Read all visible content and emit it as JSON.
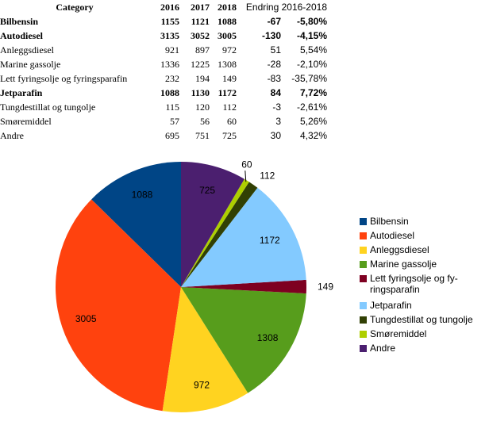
{
  "table": {
    "headers": {
      "category": "Category",
      "y2016": "2016",
      "y2017": "2017",
      "y2018": "2018",
      "change": "Endring 2016-2018"
    },
    "rows": [
      {
        "category": "Bilbensin",
        "y2016": "1155",
        "y2017": "1121",
        "y2018": "1088",
        "diff": "-67",
        "pct": "-5,80%",
        "bold": true
      },
      {
        "category": "Autodiesel",
        "y2016": "3135",
        "y2017": "3052",
        "y2018": "3005",
        "diff": "-130",
        "pct": "-4,15%",
        "bold": true
      },
      {
        "category": "Anleggsdiesel",
        "y2016": "921",
        "y2017": "897",
        "y2018": "972",
        "diff": "51",
        "pct": "5,54%",
        "bold": false
      },
      {
        "category": "Marine gassolje",
        "y2016": "1336",
        "y2017": "1225",
        "y2018": "1308",
        "diff": "-28",
        "pct": "-2,10%",
        "bold": false
      },
      {
        "category": "Lett fyringsolje og fyringsparafin",
        "y2016": "232",
        "y2017": "194",
        "y2018": "149",
        "diff": "-83",
        "pct": "-35,78%",
        "bold": false
      },
      {
        "category": "Jetparafin",
        "y2016": "1088",
        "y2017": "1130",
        "y2018": "1172",
        "diff": "84",
        "pct": "7,72%",
        "bold": true
      },
      {
        "category": "Tungdestillat og tungolje",
        "y2016": "115",
        "y2017": "120",
        "y2018": "112",
        "diff": "-3",
        "pct": "-2,61%",
        "bold": false
      },
      {
        "category": "Smøremiddel",
        "y2016": "57",
        "y2017": "56",
        "y2018": "60",
        "diff": "3",
        "pct": "5,26%",
        "bold": false
      },
      {
        "category": "Andre",
        "y2016": "695",
        "y2017": "751",
        "y2018": "725",
        "diff": "30",
        "pct": "4,32%",
        "bold": false
      }
    ]
  },
  "chart_data": {
    "type": "pie",
    "categories": [
      "Bilbensin",
      "Autodiesel",
      "Anleggsdiesel",
      "Marine gassolje",
      "Lett fyringsolje og fyringsparafin",
      "Jetparafin",
      "Tungdestillat og tungolje",
      "Smøremiddel",
      "Andre"
    ],
    "values": [
      1088,
      3005,
      972,
      1308,
      149,
      1172,
      112,
      60,
      725
    ],
    "colors": [
      "#004586",
      "#ff420e",
      "#ffd320",
      "#579d1c",
      "#7e0021",
      "#83caff",
      "#314004",
      "#aecf00",
      "#4b1f6f"
    ],
    "legend_entries": [
      "Bilbensin",
      "Autodiesel",
      "Anleggsdiesel",
      "Marine gassolje",
      "Lett fyringsolje og fy-|ringsparafin",
      "Jetparafin",
      "Tungdestillat og tungolje",
      "Smøremiddel",
      "Andre"
    ],
    "legend_position": "right",
    "start_at": "top",
    "direction": "counterclockwise"
  }
}
